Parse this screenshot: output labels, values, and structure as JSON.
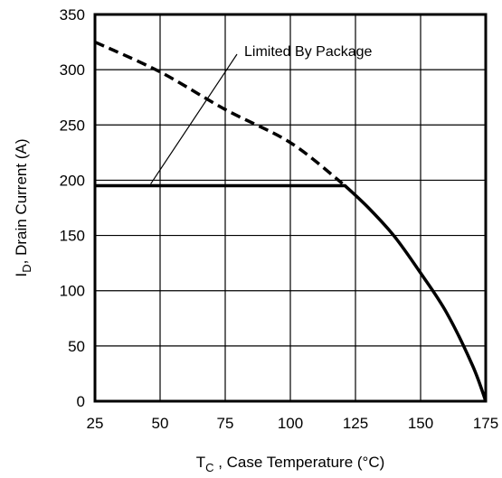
{
  "chart_data": {
    "type": "line",
    "title": "",
    "xlabel": {
      "main": "T",
      "sub": "C",
      "rest": " , Case Temperature (°C)"
    },
    "ylabel": {
      "main": "I",
      "sub": "D",
      "rest": ",  Drain Current (A)"
    },
    "xlim": [
      25,
      175
    ],
    "ylim": [
      0,
      350
    ],
    "x_ticks": [
      "25",
      "50",
      "75",
      "100",
      "125",
      "150",
      "175"
    ],
    "y_ticks": [
      "0",
      "50",
      "100",
      "150",
      "200",
      "250",
      "300",
      "350"
    ],
    "grid": true,
    "annotation": {
      "text": "Limited By Package",
      "points_to": [
        45,
        195
      ]
    },
    "series": [
      {
        "name": "",
        "style": "dashed",
        "x": [
          25,
          50,
          75,
          100,
          120
        ],
        "y": [
          325,
          298,
          264,
          234,
          197
        ]
      },
      {
        "name": "",
        "style": "solid",
        "x": [
          25,
          121,
          130,
          140,
          150,
          160,
          170,
          175
        ],
        "y": [
          195,
          195,
          175,
          149,
          116,
          80,
          32,
          0
        ]
      }
    ]
  }
}
